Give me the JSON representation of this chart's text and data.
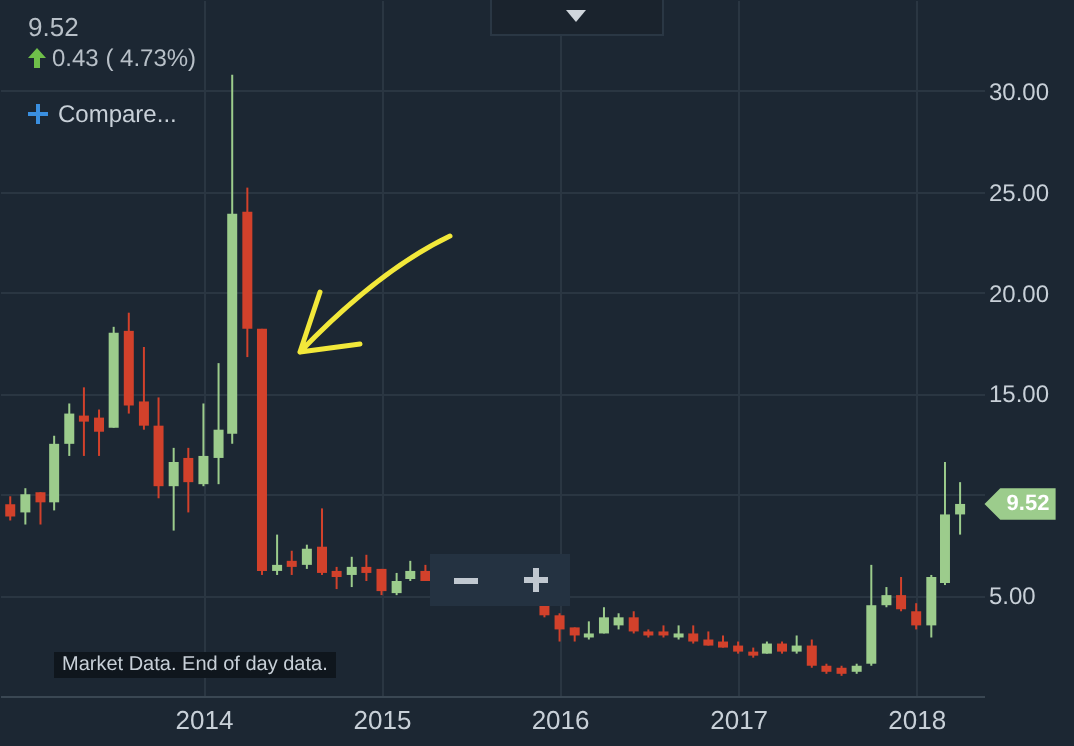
{
  "chart_data": {
    "type": "candlestick",
    "title": "9.52",
    "subtitle": "0.43 ( 4.73%)",
    "annotations": [
      "Compare...",
      "Market Data. End of day data.",
      "9.52"
    ],
    "x": [
      "2012-12",
      "2013-01",
      "2013-02",
      "2013-03",
      "2013-04",
      "2013-05",
      "2013-06",
      "2013-07",
      "2013-08",
      "2013-09",
      "2013-10",
      "2013-11",
      "2013-12",
      "2014-01",
      "2014-02",
      "2014-03",
      "2014-04",
      "2014-05",
      "2014-06",
      "2014-07",
      "2014-08",
      "2014-09",
      "2014-10",
      "2014-11",
      "2014-12",
      "2015-01",
      "2015-02",
      "2015-03",
      "2015-04",
      "2015-12",
      "2016-01",
      "2016-02",
      "2016-03",
      "2016-04",
      "2016-05",
      "2016-06",
      "2016-07",
      "2016-08",
      "2016-09",
      "2016-10",
      "2016-11",
      "2016-12",
      "2017-01",
      "2017-02",
      "2017-03",
      "2017-04",
      "2017-05",
      "2017-06",
      "2017-07",
      "2017-08",
      "2017-09",
      "2017-10",
      "2017-11",
      "2017-12",
      "2018-01",
      "2018-02",
      "2018-03",
      "2018-04"
    ],
    "ohlc": [
      [
        9.5,
        9.9,
        8.7,
        8.9
      ],
      [
        9.1,
        10.3,
        8.5,
        10.0
      ],
      [
        10.1,
        10.1,
        8.5,
        9.6
      ],
      [
        9.6,
        12.9,
        9.2,
        12.5
      ],
      [
        12.5,
        14.5,
        11.9,
        14.0
      ],
      [
        13.9,
        15.3,
        11.9,
        13.6
      ],
      [
        13.8,
        14.2,
        11.9,
        13.1
      ],
      [
        13.3,
        18.3,
        13.3,
        18.0
      ],
      [
        18.1,
        19.0,
        14.0,
        14.4
      ],
      [
        14.6,
        17.3,
        13.2,
        13.4
      ],
      [
        13.4,
        14.8,
        9.8,
        10.4
      ],
      [
        10.4,
        12.3,
        8.2,
        11.6
      ],
      [
        11.8,
        12.3,
        9.1,
        10.6
      ],
      [
        10.5,
        14.5,
        10.4,
        11.9
      ],
      [
        11.8,
        16.5,
        10.5,
        13.2
      ],
      [
        13.0,
        30.8,
        12.5,
        23.9
      ],
      [
        24.0,
        25.2,
        16.8,
        18.2
      ],
      [
        18.2,
        18.2,
        6.0,
        6.2
      ],
      [
        6.2,
        8.0,
        6.0,
        6.5
      ],
      [
        6.7,
        7.2,
        6.0,
        6.4
      ],
      [
        6.5,
        7.5,
        6.3,
        7.3
      ],
      [
        7.4,
        9.3,
        6.0,
        6.1
      ],
      [
        6.2,
        6.4,
        5.3,
        5.9
      ],
      [
        6.0,
        6.9,
        5.4,
        6.4
      ],
      [
        6.4,
        7.0,
        5.7,
        6.1
      ],
      [
        6.3,
        6.3,
        5.0,
        5.2
      ],
      [
        5.1,
        6.1,
        5.0,
        5.7
      ],
      [
        5.8,
        6.7,
        5.7,
        6.2
      ],
      [
        6.2,
        6.5,
        5.7,
        5.7
      ],
      [
        4.5,
        4.6,
        3.9,
        4.0
      ],
      [
        4.0,
        4.1,
        2.7,
        3.3
      ],
      [
        3.4,
        3.4,
        2.7,
        3.0
      ],
      [
        2.9,
        3.7,
        2.8,
        3.1
      ],
      [
        3.1,
        4.4,
        3.1,
        3.9
      ],
      [
        3.5,
        4.1,
        3.3,
        3.9
      ],
      [
        3.9,
        4.2,
        3.1,
        3.2
      ],
      [
        3.2,
        3.3,
        2.9,
        3.0
      ],
      [
        3.2,
        3.5,
        2.9,
        3.0
      ],
      [
        2.9,
        3.5,
        2.8,
        3.1
      ],
      [
        3.1,
        3.5,
        2.6,
        2.7
      ],
      [
        2.8,
        3.2,
        2.5,
        2.5
      ],
      [
        2.7,
        3.0,
        2.4,
        2.4
      ],
      [
        2.5,
        2.7,
        2.1,
        2.2
      ],
      [
        2.2,
        2.4,
        1.9,
        2.0
      ],
      [
        2.1,
        2.7,
        2.1,
        2.6
      ],
      [
        2.6,
        2.7,
        2.1,
        2.2
      ],
      [
        2.2,
        3.0,
        2.1,
        2.5
      ],
      [
        2.5,
        2.8,
        1.4,
        1.5
      ],
      [
        1.5,
        1.6,
        1.1,
        1.2
      ],
      [
        1.4,
        1.5,
        1.0,
        1.1
      ],
      [
        1.2,
        1.6,
        1.1,
        1.5
      ],
      [
        1.6,
        6.5,
        1.5,
        4.5
      ],
      [
        4.5,
        5.4,
        4.4,
        5.0
      ],
      [
        5.0,
        5.9,
        4.2,
        4.3
      ],
      [
        4.2,
        4.6,
        3.3,
        3.5
      ],
      [
        3.5,
        6.0,
        2.9,
        5.9
      ],
      [
        5.6,
        11.6,
        5.5,
        9.0
      ],
      [
        9.0,
        10.6,
        8.0,
        9.52
      ]
    ],
    "colors": [
      "#d2412b",
      "#9ccc8c",
      "#d2412b",
      "#9ccc8c",
      "#9ccc8c",
      "#d2412b",
      "#d2412b",
      "#9ccc8c",
      "#d2412b",
      "#d2412b",
      "#d2412b",
      "#9ccc8c",
      "#d2412b",
      "#9ccc8c",
      "#9ccc8c",
      "#9ccc8c",
      "#d2412b",
      "#d2412b",
      "#9ccc8c",
      "#d2412b",
      "#9ccc8c",
      "#d2412b",
      "#d2412b",
      "#9ccc8c",
      "#d2412b",
      "#d2412b",
      "#9ccc8c",
      "#9ccc8c",
      "#d2412b",
      "#d2412b",
      "#d2412b",
      "#d2412b",
      "#9ccc8c",
      "#9ccc8c",
      "#9ccc8c",
      "#d2412b",
      "#d2412b",
      "#d2412b",
      "#9ccc8c",
      "#d2412b",
      "#d2412b",
      "#d2412b",
      "#d2412b",
      "#d2412b",
      "#9ccc8c",
      "#d2412b",
      "#9ccc8c",
      "#d2412b",
      "#d2412b",
      "#d2412b",
      "#9ccc8c",
      "#9ccc8c",
      "#9ccc8c",
      "#d2412b",
      "#d2412b",
      "#9ccc8c",
      "#9ccc8c",
      "#9ccc8c"
    ],
    "xlim": [
      "2012-11-10",
      "2018-05-20"
    ],
    "xticks": [
      "2014",
      "2015",
      "2016",
      "2017",
      "2018"
    ],
    "ylim": [
      0,
      34.5
    ],
    "yticks": [
      {
        "value": 5,
        "label": "5.00"
      },
      {
        "value": 10,
        "label": null
      },
      {
        "value": 15,
        "label": "15.00"
      },
      {
        "value": 20,
        "label": "20.00"
      },
      {
        "value": 25,
        "label": "25.00"
      },
      {
        "value": 30,
        "label": "30.00"
      }
    ],
    "grid": true
  }
}
